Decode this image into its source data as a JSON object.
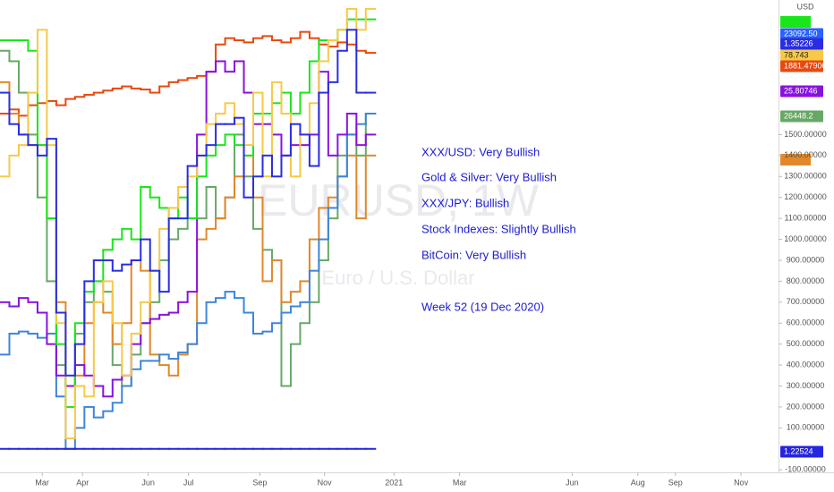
{
  "chart_data": {
    "type": "step",
    "watermark": "EURUSD, 1W",
    "watermark_subtitle": "Euro / U.S. Dollar",
    "currency": "USD",
    "annotations": [
      "XXX/USD: Very Bullish",
      "Gold & Silver: Very Bullish",
      "XXX/JPY: Bullish",
      "Stock Indexes:  Slightly Bullish",
      "BitCoin: Very Bullish",
      "Week 52 (19 Dec 2020)"
    ],
    "xlim": [
      0,
      83
    ],
    "xticks": [
      {
        "value": 4.5,
        "label": "Mar"
      },
      {
        "value": 8.8,
        "label": "Apr"
      },
      {
        "value": 15.8,
        "label": "Jun"
      },
      {
        "value": 20.1,
        "label": "Jul"
      },
      {
        "value": 27.7,
        "label": "Sep"
      },
      {
        "value": 34.6,
        "label": "Nov"
      },
      {
        "value": 42,
        "label": "2021"
      },
      {
        "value": 49,
        "label": "Mar"
      },
      {
        "value": 61,
        "label": "Jun"
      },
      {
        "value": 68,
        "label": "Aug"
      },
      {
        "value": 72,
        "label": "Sep"
      },
      {
        "value": 79,
        "label": "Nov"
      }
    ],
    "ylim": [
      -100,
      2100
    ],
    "yticks": [
      {
        "value": -100,
        "label": "-100.00000"
      },
      {
        "value": 100,
        "label": "100.00000"
      },
      {
        "value": 200,
        "label": "200.00000"
      },
      {
        "value": 300,
        "label": "300.00000"
      },
      {
        "value": 400,
        "label": "400.00000"
      },
      {
        "value": 500,
        "label": "500.00000"
      },
      {
        "value": 600,
        "label": "600.00000"
      },
      {
        "value": 700,
        "label": "700.00000"
      },
      {
        "value": 800,
        "label": "800.00000"
      },
      {
        "value": 900,
        "label": "900.00000"
      },
      {
        "value": 1000,
        "label": "1000.00000"
      },
      {
        "value": 1100,
        "label": "1100.00000"
      },
      {
        "value": 1200,
        "label": "1200.00000"
      },
      {
        "value": 1300,
        "label": "1300.00000"
      },
      {
        "value": 1400,
        "label": "1400.00000"
      },
      {
        "value": 1500,
        "label": "1500.00000"
      }
    ],
    "series": [
      {
        "color": "#e8490f",
        "values": [
          1600,
          1620,
          1590,
          1640,
          1650,
          1660,
          1640,
          1670,
          1680,
          1690,
          1700,
          1710,
          1720,
          1730,
          1720,
          1715,
          1700,
          1730,
          1750,
          1760,
          1770,
          1780,
          1800,
          1930,
          1960,
          1950,
          1940,
          1960,
          1970,
          1950,
          1940,
          1960,
          1990,
          1960,
          1930,
          1920,
          1940,
          1930,
          1900,
          1890
        ]
      },
      {
        "color": "#67a867",
        "values": [
          1900,
          1850,
          1700,
          1500,
          1200,
          800,
          400,
          300,
          550,
          700,
          800,
          750,
          400,
          300,
          450,
          600,
          700,
          900,
          1000,
          1050,
          1100,
          1100,
          1250,
          1100,
          1200,
          1500,
          1300,
          1050,
          950,
          900,
          300,
          500,
          600,
          700,
          900,
          1100,
          1400,
          1500,
          1400,
          1600
        ]
      },
      {
        "color": "#e0882a",
        "values": [
          1750,
          1600,
          1500,
          1450,
          1450,
          1100,
          700,
          300,
          350,
          600,
          700,
          650,
          500,
          600,
          900,
          850,
          450,
          400,
          350,
          450,
          500,
          1000,
          1050,
          1100,
          1200,
          1300,
          1400,
          1200,
          800,
          900,
          700,
          750,
          800,
          1000,
          1150,
          1200,
          1300,
          1400,
          1100,
          1400
        ]
      },
      {
        "color": "#3d86d8",
        "values": [
          450,
          550,
          560,
          550,
          530,
          550,
          250,
          0,
          100,
          200,
          150,
          180,
          220,
          300,
          380,
          420,
          420,
          450,
          430,
          460,
          500,
          600,
          700,
          720,
          750,
          720,
          650,
          550,
          560,
          600,
          650,
          680,
          700,
          850,
          1000,
          1150,
          1300,
          1500,
          1550,
          1600
        ]
      },
      {
        "color": "#8a12e0",
        "values": [
          700,
          680,
          720,
          700,
          650,
          500,
          350,
          300,
          400,
          350,
          300,
          250,
          330,
          350,
          500,
          600,
          620,
          640,
          650,
          700,
          750,
          1500,
          1800,
          1850,
          1800,
          1850,
          1700,
          1550,
          1550,
          1500,
          1400,
          1450,
          1450,
          1500,
          1800,
          1400,
          1500,
          1600,
          1450,
          1500
        ]
      },
      {
        "color": "#19e619",
        "values": [
          1950,
          1950,
          1950,
          1900,
          1450,
          1100,
          500,
          200,
          600,
          750,
          800,
          950,
          1000,
          1050,
          1000,
          1250,
          1200,
          1150,
          1100,
          1200,
          1100,
          1300,
          1400,
          1450,
          1500,
          1450,
          1400,
          1600,
          1600,
          1650,
          1700,
          1600,
          1700,
          1850,
          1950,
          1950,
          2000,
          2050,
          2050,
          2050
        ]
      },
      {
        "color": "#f7c948",
        "values": [
          1300,
          1400,
          1450,
          1700,
          2000,
          1450,
          600,
          50,
          300,
          250,
          700,
          800,
          600,
          350,
          550,
          700,
          850,
          1050,
          1150,
          1250,
          1300,
          1400,
          1550,
          1600,
          1650,
          1550,
          1450,
          1700,
          1300,
          1750,
          1600,
          1300,
          1500,
          1650,
          1850,
          1950,
          2000,
          2100,
          2000,
          2100
        ]
      },
      {
        "color": "#2a2ee0",
        "values": [
          1700,
          1550,
          1500,
          1450,
          1400,
          1480,
          650,
          350,
          500,
          800,
          900,
          900,
          850,
          880,
          900,
          1000,
          850,
          750,
          1100,
          1100,
          1350,
          1400,
          1450,
          1550,
          1550,
          1580,
          1200,
          1300,
          1400,
          1300,
          1400,
          1550,
          1500,
          1350,
          1700,
          1750,
          1900,
          2000,
          1700,
          1700
        ]
      },
      {
        "color": "#2626e0",
        "values": [
          0,
          0,
          0,
          0,
          0,
          0,
          0,
          0,
          0,
          0,
          0,
          0,
          0,
          0,
          0,
          0,
          0,
          0,
          0,
          0,
          0,
          0,
          0,
          0,
          0,
          0,
          0,
          0,
          0,
          0,
          0,
          0,
          0,
          0,
          0,
          0,
          0,
          0,
          0,
          0
        ]
      }
    ],
    "price_labels": [
      {
        "label": "23092.50",
        "color": "#2962ff"
      },
      {
        "label": "1.35226",
        "color": "#2a2ee0"
      },
      {
        "label": "78.743",
        "color": "#f7c948"
      },
      {
        "label": "1881.47900",
        "color": "#e8490f"
      },
      {
        "label": "25.80746",
        "color": "#8a12e0"
      },
      {
        "label": "26448.2",
        "color": "#67a867"
      },
      {
        "label": "1.22524",
        "color": "#2626e0"
      }
    ]
  }
}
